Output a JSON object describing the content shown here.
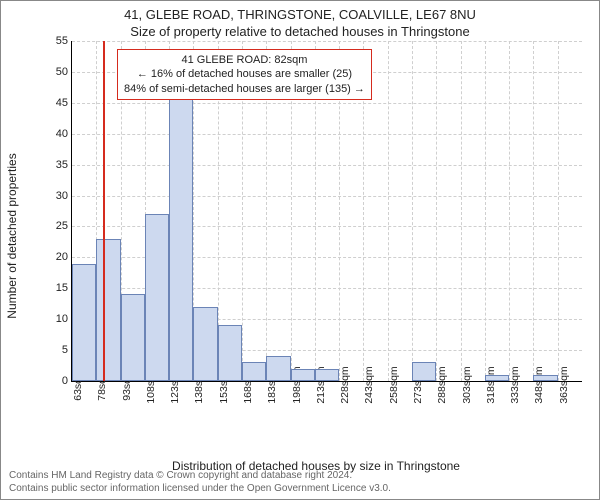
{
  "header": {
    "address_line": "41, GLEBE ROAD, THRINGSTONE, COALVILLE, LE67 8NU",
    "subtitle": "Size of property relative to detached houses in Thringstone"
  },
  "chart": {
    "type": "histogram",
    "ylabel": "Number of detached properties",
    "xlabel": "Distribution of detached houses by size in Thringstone",
    "ylim": [
      0,
      55
    ],
    "ytick_step": 5,
    "xstart": 63,
    "xstep": 15,
    "xcount": 21,
    "xunit": "sqm",
    "bar_fill": "#cdd9ef",
    "bar_stroke": "#6b84b6",
    "grid_color": "#cfcfcf",
    "background_color": "#ffffff",
    "bars": [
      19,
      23,
      14,
      27,
      46,
      12,
      9,
      3,
      4,
      2,
      2,
      0,
      0,
      0,
      3,
      0,
      0,
      1,
      0,
      1,
      0
    ],
    "reference": {
      "value_sqm": 82,
      "line_color": "#d52b1e"
    },
    "info_box": {
      "border_color": "#d52b1e",
      "line1": "41 GLEBE ROAD: 82sqm",
      "line2": "← 16% of detached houses are smaller (25)",
      "line3": "84% of semi-detached houses are larger (135) →"
    }
  },
  "footer": {
    "line1": "Contains HM Land Registry data © Crown copyright and database right 2024.",
    "line2": "Contains public sector information licensed under the Open Government Licence v3.0."
  }
}
